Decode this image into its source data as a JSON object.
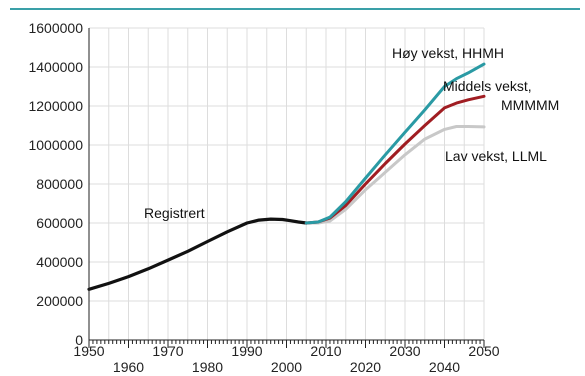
{
  "chart_data": {
    "type": "line",
    "title": "",
    "xlabel": "",
    "ylabel": "",
    "xlim": [
      1950,
      2050
    ],
    "ylim": [
      0,
      1600000
    ],
    "grid": true,
    "y_ticks": [
      0,
      200000,
      400000,
      600000,
      800000,
      1000000,
      1200000,
      1400000,
      1600000
    ],
    "y_tick_labels": [
      "0",
      "200000",
      "400000",
      "600000",
      "800000",
      "1000000",
      "1200000",
      "1400000",
      "1600000"
    ],
    "x_ticks": [
      1950,
      1960,
      1970,
      1980,
      1990,
      2000,
      2010,
      2020,
      2030,
      2040,
      2050
    ],
    "x_tick_labels": [
      "1950",
      "1960",
      "1970",
      "1980",
      "1990",
      "2000",
      "2010",
      "2020",
      "2030",
      "2040",
      "2050"
    ],
    "series": [
      {
        "name": "Registrert",
        "color": "#111111",
        "x": [
          1950,
          1955,
          1960,
          1965,
          1970,
          1975,
          1980,
          1985,
          1990,
          1993,
          1996,
          1999,
          2001,
          2003,
          2005
        ],
        "y": [
          260000,
          290000,
          325000,
          365000,
          410000,
          455000,
          505000,
          555000,
          600000,
          615000,
          620000,
          618000,
          612000,
          605000,
          600000
        ]
      },
      {
        "name": "Lav vekst, LLML",
        "color": "#c8c8c8",
        "x": [
          2005,
          2008,
          2011,
          2015,
          2020,
          2025,
          2030,
          2035,
          2040,
          2043,
          2046,
          2050
        ],
        "y": [
          600000,
          600000,
          610000,
          670000,
          770000,
          860000,
          950000,
          1030000,
          1080000,
          1095000,
          1095000,
          1093000
        ]
      },
      {
        "name": "Middels vekst, MMMMM",
        "color": "#a01d22",
        "x": [
          2005,
          2008,
          2011,
          2015,
          2020,
          2025,
          2030,
          2035,
          2040,
          2043,
          2046,
          2050
        ],
        "y": [
          600000,
          605000,
          625000,
          690000,
          800000,
          905000,
          1005000,
          1100000,
          1190000,
          1215000,
          1232000,
          1250000
        ]
      },
      {
        "name": "Høy vekst, HHMH",
        "color": "#2a9aa4",
        "x": [
          2005,
          2008,
          2011,
          2015,
          2020,
          2025,
          2030,
          2035,
          2040,
          2043,
          2046,
          2050
        ],
        "y": [
          600000,
          605000,
          630000,
          710000,
          830000,
          950000,
          1065000,
          1180000,
          1300000,
          1340000,
          1370000,
          1415000
        ]
      }
    ],
    "annotations": [
      {
        "text": "Registrert",
        "series_index": 0
      },
      {
        "text": "Høy vekst, HHMH",
        "series_index": 3
      },
      {
        "text": "Middels vekst,",
        "series_index": 2
      },
      {
        "text": "MMMMM",
        "series_index": 2
      },
      {
        "text": "Lav vekst, LLML",
        "series_index": 1
      }
    ],
    "colors": {
      "frame_top": "#3aa0a8",
      "grid": "#dddddd",
      "axis": "#222222",
      "text": "#111111"
    }
  }
}
